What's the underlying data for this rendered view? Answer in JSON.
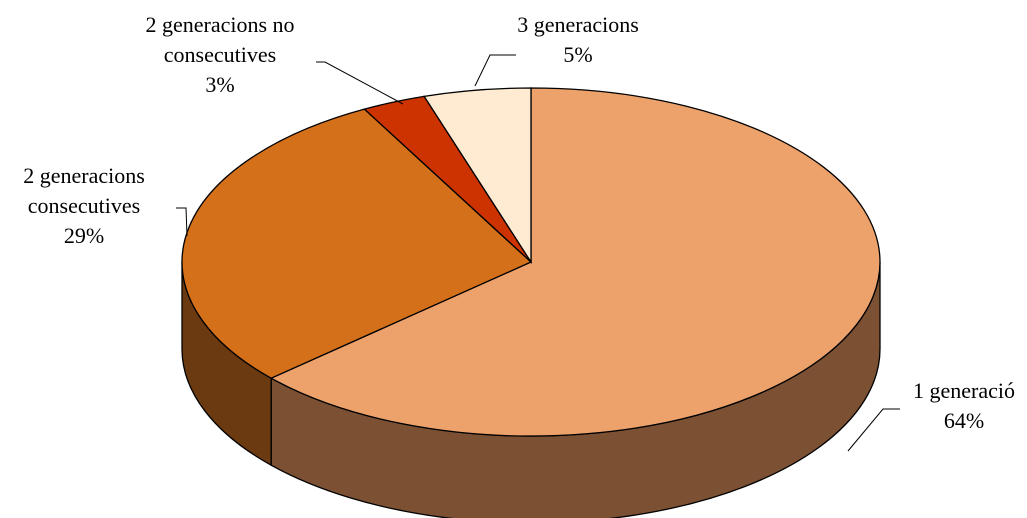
{
  "chart_data": {
    "type": "pie",
    "categories": [
      "1 generació",
      "2 generacions consecutives",
      "2 generacions no consecutives",
      "3 generacions"
    ],
    "values": [
      64,
      29,
      3,
      5
    ],
    "labels": [
      {
        "lines": [
          "1 generació",
          "64%"
        ]
      },
      {
        "lines": [
          "2 generacions",
          "consecutives",
          "29%"
        ]
      },
      {
        "lines": [
          "2 generacions no",
          "consecutives",
          "3%"
        ]
      },
      {
        "lines": [
          "3 generacions",
          "5%"
        ]
      }
    ],
    "colors": {
      "top": [
        "#EDA26C",
        "#D5701A",
        "#CC3300",
        "#FFEBD2"
      ],
      "side": [
        "#7B5033",
        "#6B3A10",
        "#6B1A00",
        "#8A7B6A"
      ]
    },
    "style": "3d-pie",
    "legend": "none"
  }
}
